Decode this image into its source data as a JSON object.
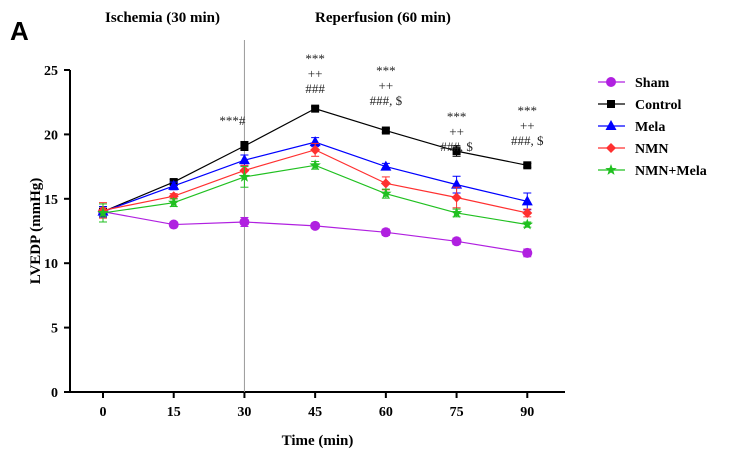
{
  "chart_data": {
    "type": "line",
    "panel_label": "A",
    "xlabel": "Time (min)",
    "ylabel": "LVEDP (mmHg)",
    "x": [
      0,
      15,
      30,
      45,
      60,
      75,
      90
    ],
    "xticks": [
      "0",
      "15",
      "30",
      "45",
      "60",
      "75",
      "90"
    ],
    "yticks": [
      "0",
      "5",
      "10",
      "15",
      "20",
      "25"
    ],
    "ylim": [
      0,
      25
    ],
    "xlim": [
      -7,
      98
    ],
    "grid": false,
    "legend_position": "right",
    "phase_labels": [
      "Ischemia (30 min)",
      "Reperfusion (60 min)"
    ],
    "phase_divider_x": 30,
    "series": [
      {
        "name": "Sham",
        "color": "#b020e0",
        "marker": "circle",
        "values": [
          14.0,
          13.0,
          13.2,
          12.9,
          12.4,
          11.7,
          10.8
        ],
        "errors": [
          0.4,
          0.2,
          0.35,
          0.2,
          0.25,
          0.25,
          0.3
        ]
      },
      {
        "name": "Control",
        "color": "#000000",
        "marker": "square",
        "values": [
          14.0,
          16.3,
          19.1,
          22.0,
          20.3,
          18.7,
          17.6
        ],
        "errors": [
          0.4,
          0.2,
          0.35,
          0.15,
          0.15,
          0.4,
          0.15
        ]
      },
      {
        "name": "Mela",
        "color": "#0000ff",
        "marker": "triangle",
        "values": [
          14.0,
          16.0,
          18.0,
          19.4,
          17.5,
          16.1,
          14.8
        ],
        "errors": [
          0.4,
          0.3,
          0.4,
          0.35,
          0.25,
          0.65,
          0.65
        ]
      },
      {
        "name": "NMN",
        "color": "#ff3030",
        "marker": "diamond",
        "values": [
          14.1,
          15.2,
          17.2,
          18.8,
          16.2,
          15.1,
          13.9
        ],
        "errors": [
          0.6,
          0.2,
          0.4,
          0.5,
          0.5,
          0.8,
          0.3
        ]
      },
      {
        "name": "NMN+Mela",
        "color": "#20c020",
        "marker": "star",
        "values": [
          13.9,
          14.7,
          16.7,
          17.6,
          15.4,
          13.9,
          13.0
        ],
        "errors": [
          0.7,
          0.3,
          0.8,
          0.3,
          0.35,
          0.3,
          0.2
        ]
      }
    ],
    "annotations": [
      {
        "x": 30,
        "lines": [
          "***#"
        ]
      },
      {
        "x": 45,
        "lines": [
          "***",
          "++",
          "###"
        ]
      },
      {
        "x": 60,
        "lines": [
          "***",
          "++",
          "###, $"
        ]
      },
      {
        "x": 75,
        "lines": [
          "***",
          "++",
          "###, $"
        ]
      },
      {
        "x": 90,
        "lines": [
          "***",
          "++",
          "###, $"
        ]
      }
    ]
  }
}
